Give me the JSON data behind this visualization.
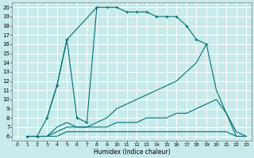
{
  "title": "",
  "xlabel": "Humidex (Indice chaleur)",
  "bg_color": "#c8eaea",
  "line_color": "#007070",
  "grid_color": "#ffffff",
  "xlim": [
    -0.5,
    23.5
  ],
  "ylim": [
    5.5,
    20.5
  ],
  "xticks": [
    0,
    1,
    2,
    3,
    4,
    5,
    6,
    7,
    8,
    9,
    10,
    11,
    12,
    13,
    14,
    15,
    16,
    17,
    18,
    19,
    20,
    21,
    22,
    23
  ],
  "yticks": [
    6,
    7,
    8,
    9,
    10,
    11,
    12,
    13,
    14,
    15,
    16,
    17,
    18,
    19,
    20
  ],
  "series": [
    {
      "x": [
        1,
        2,
        3,
        4,
        5,
        8,
        9,
        10,
        11,
        12,
        13,
        14,
        15,
        16,
        17,
        18,
        19
      ],
      "y": [
        6,
        6,
        8,
        11.5,
        16.5,
        20,
        20,
        20,
        19.5,
        19.5,
        19.5,
        19,
        19,
        19,
        18,
        16.5,
        16
      ],
      "marker": "+"
    },
    {
      "x": [
        3,
        4,
        5,
        6,
        7,
        8
      ],
      "y": [
        8,
        11.5,
        16.5,
        8,
        7.5,
        20
      ],
      "marker": "+"
    },
    {
      "x": [
        1,
        2,
        3,
        4,
        5,
        6,
        7,
        8,
        9,
        10,
        11,
        12,
        13,
        14,
        15,
        16,
        17,
        18,
        19,
        20,
        21,
        22,
        23
      ],
      "y": [
        6,
        6,
        6,
        7,
        7.5,
        7,
        7,
        7.5,
        8,
        9,
        9.5,
        10,
        10.5,
        11,
        11.5,
        12,
        13,
        14,
        16,
        11,
        8.5,
        6,
        6
      ],
      "marker": null
    },
    {
      "x": [
        1,
        2,
        3,
        4,
        5,
        6,
        7,
        8,
        9,
        10,
        11,
        12,
        13,
        14,
        15,
        16,
        17,
        18,
        19,
        20,
        21,
        22,
        23
      ],
      "y": [
        6,
        6,
        6,
        6.5,
        7,
        7,
        7,
        7,
        7,
        7.5,
        7.5,
        7.5,
        8,
        8,
        8,
        8.5,
        8.5,
        9,
        9.5,
        10,
        8.5,
        6.5,
        6
      ],
      "marker": null
    },
    {
      "x": [
        1,
        2,
        3,
        4,
        5,
        6,
        7,
        8,
        9,
        10,
        11,
        12,
        13,
        14,
        15,
        16,
        17,
        18,
        19,
        20,
        21,
        22,
        23
      ],
      "y": [
        6,
        6,
        6,
        6,
        6.5,
        6.5,
        6.5,
        6.5,
        6.5,
        6.5,
        6.5,
        6.5,
        6.5,
        6.5,
        6.5,
        6.5,
        6.5,
        6.5,
        6.5,
        6.5,
        6.5,
        6,
        6
      ],
      "marker": null
    }
  ]
}
